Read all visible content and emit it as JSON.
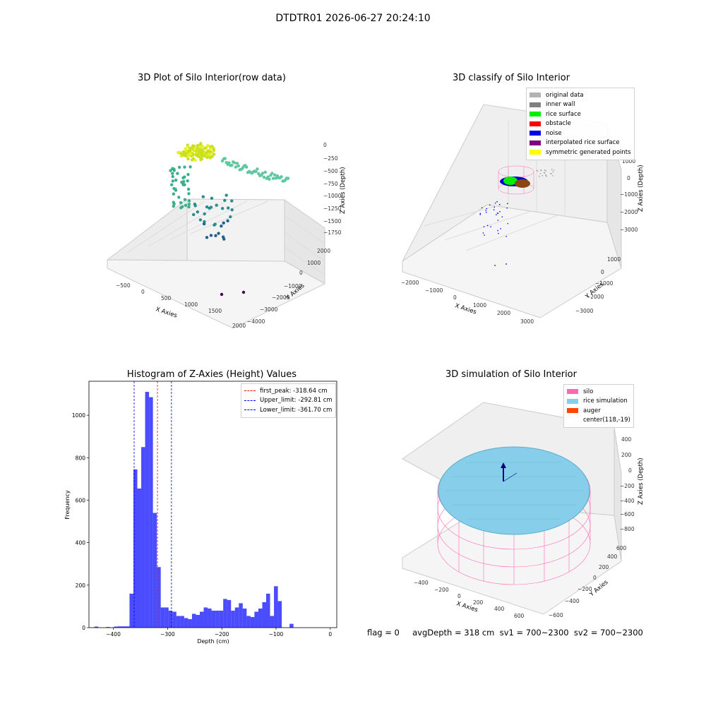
{
  "suptitle": "DTDTR01 2026-06-27 20:24:10",
  "panels": {
    "raw": {
      "title": "3D Plot of Silo Interior(row data)",
      "xlabel": "X Axies",
      "ylabel": "Y Axies",
      "zlabel": "Z Axies (Depth)",
      "xticks": [
        "−500",
        "0",
        "500",
        "1000",
        "1500",
        "2000"
      ],
      "yticks": [
        "−4000",
        "−3000",
        "−2000",
        "−1000",
        "0",
        "1000",
        "2000"
      ],
      "zticks": [
        "0",
        "−250",
        "−500",
        "−750",
        "−1000",
        "−1250",
        "−1500",
        "−1750"
      ]
    },
    "classify": {
      "title": "3D classify of Silo Interior",
      "xlabel": "X Axies",
      "ylabel": "Y Axies",
      "zlabel": "Z Axies (Depth)",
      "xticks": [
        "−2000",
        "−1000",
        "0",
        "1000",
        "2000",
        "3000"
      ],
      "yticks": [
        "−3000",
        "−2000",
        "−1000",
        "0",
        "1000"
      ],
      "zticks": [
        "2000",
        "1000",
        "0",
        "−1000",
        "−2000",
        "−3000"
      ],
      "legend": [
        {
          "label": "original data",
          "color": "#b3b3b3"
        },
        {
          "label": "inner wall",
          "color": "#808080"
        },
        {
          "label": "rice surface",
          "color": "#00ee00"
        },
        {
          "label": "obstacle",
          "color": "#ff0000"
        },
        {
          "label": "noise",
          "color": "#0000ee"
        },
        {
          "label": "interpolated rice surface",
          "color": "#800080"
        },
        {
          "label": "symmetric generated points",
          "color": "#ffff00"
        }
      ]
    },
    "simulation": {
      "title": "3D simulation of Silo Interior",
      "xlabel": "X Axies",
      "ylabel": "Y Axies",
      "zlabel": "Z Axies (Depth)",
      "xticks": [
        "−400",
        "−200",
        "0",
        "200",
        "400",
        "600"
      ],
      "yticks": [
        "−600",
        "−400",
        "−200",
        "0",
        "200",
        "400",
        "600"
      ],
      "zticks": [
        "400",
        "200",
        "0",
        "−200",
        "−400",
        "−600",
        "−800"
      ],
      "legend": [
        {
          "label": "silo",
          "color": "#ff69b4"
        },
        {
          "label": "rice simulation",
          "color": "#87ceeb"
        },
        {
          "label": "auger",
          "color": "#ff4500"
        },
        {
          "label": "center(118,-19)",
          "color": ""
        }
      ]
    }
  },
  "footer": "flag = 0     avgDepth = 318 cm  sv1 = 700~2300  sv2 = 700~2300",
  "chart_data": [
    {
      "type": "bar",
      "title": "Histogram of Z-Axies (Height) Values",
      "xlabel": "Depth (cm)",
      "ylabel": "Frequency",
      "xlim": [
        -445,
        12
      ],
      "ylim": [
        0,
        1160
      ],
      "bin_start": -435,
      "bin_width": 7.2,
      "values": [
        5,
        0,
        0,
        3,
        0,
        5,
        6,
        6,
        6,
        160,
        745,
        655,
        850,
        1110,
        1085,
        540,
        285,
        95,
        95,
        80,
        75,
        55,
        55,
        45,
        40,
        65,
        60,
        75,
        95,
        90,
        80,
        80,
        80,
        135,
        130,
        80,
        95,
        115,
        90,
        55,
        50,
        75,
        90,
        120,
        160,
        55,
        195,
        125,
        0,
        0,
        18
      ],
      "color": "#0000ff",
      "xticks": [
        -400,
        -300,
        -200,
        -100,
        0
      ],
      "xtick_labels": [
        "−400",
        "−300",
        "−200",
        "−100",
        "0"
      ],
      "yticks": [
        0,
        200,
        400,
        600,
        800,
        1000
      ],
      "vlines": [
        {
          "label": "first_peak: -318.64 cm",
          "x": -318.64,
          "color": "#ff0000"
        },
        {
          "label": "Upper_limit: -292.81 cm",
          "x": -292.81,
          "color": "#0000ff"
        },
        {
          "label": "Lower_limit: -361.70 cm",
          "x": -361.7,
          "color": "#0000ff"
        }
      ],
      "legend_position": "upper right"
    }
  ]
}
